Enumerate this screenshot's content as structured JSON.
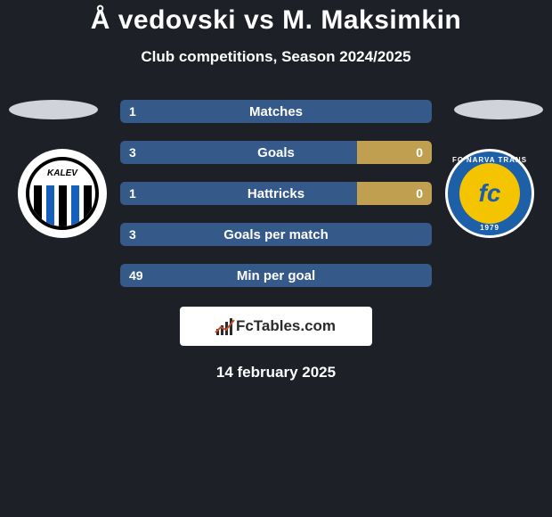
{
  "title": "Å vedovski vs M. Maksimkin",
  "subtitle": "Club competitions, Season 2024/2025",
  "date": "14 february 2025",
  "watermark_text": "FcTables.com",
  "colors": {
    "background": "#1d2027",
    "player_left": "#355a8a",
    "player_right": "#c0a050",
    "ellipse_left": "#d0d4da",
    "ellipse_right": "#d0d4da",
    "narva_blue": "#1d60a7",
    "narva_yellow": "#f5c400",
    "wm_accent": "#c94b2c"
  },
  "clubs": {
    "left": {
      "name": "Kalev",
      "label": "KALEV"
    },
    "right": {
      "name": "Narva Trans",
      "top": "FC NARVA TRANS",
      "center": "fc",
      "year": "1979"
    }
  },
  "bars": [
    {
      "label": "Matches",
      "left": "1",
      "right": null,
      "left_pct": 100,
      "right_pct": 0,
      "single": true
    },
    {
      "label": "Goals",
      "left": "3",
      "right": "0",
      "left_pct": 76,
      "right_pct": 24,
      "single": false
    },
    {
      "label": "Hattricks",
      "left": "1",
      "right": "0",
      "left_pct": 76,
      "right_pct": 24,
      "single": false
    },
    {
      "label": "Goals per match",
      "left": "3",
      "right": null,
      "left_pct": 100,
      "right_pct": 0,
      "single": true
    },
    {
      "label": "Min per goal",
      "left": "49",
      "right": null,
      "left_pct": 100,
      "right_pct": 0,
      "single": true
    }
  ]
}
